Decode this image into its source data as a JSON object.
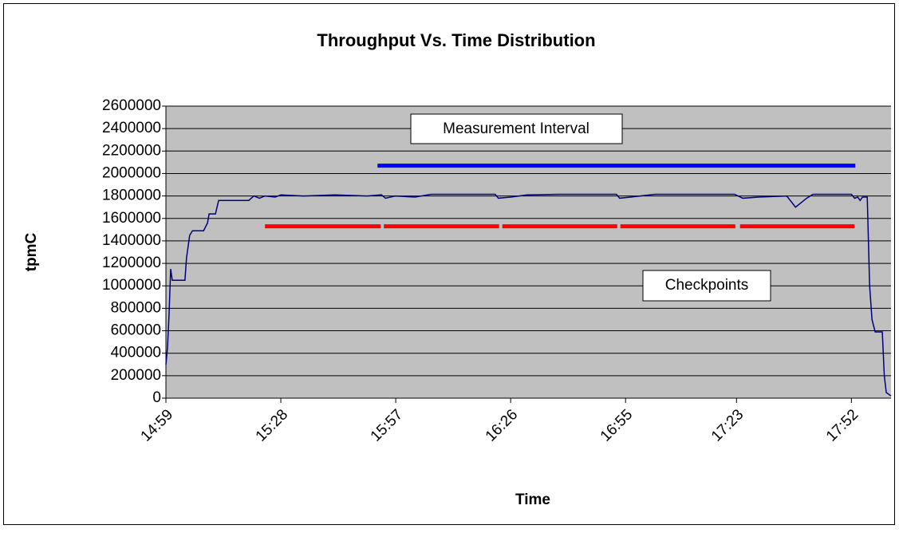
{
  "chart_data": {
    "type": "line",
    "title": "Throughput Vs. Time Distribution",
    "x_label": "Time",
    "y_label": "tpmC",
    "xlim": [
      899,
      1082
    ],
    "xticks": [
      {
        "value": 899,
        "label": "14:59"
      },
      {
        "value": 928,
        "label": "15:28"
      },
      {
        "value": 957,
        "label": "15:57"
      },
      {
        "value": 986,
        "label": "16:26"
      },
      {
        "value": 1015,
        "label": "16:55"
      },
      {
        "value": 1043,
        "label": "17:23"
      },
      {
        "value": 1072,
        "label": "17:52"
      }
    ],
    "ylim": [
      0,
      2600000
    ],
    "yticks": [
      0,
      200000,
      400000,
      600000,
      800000,
      1000000,
      1200000,
      1400000,
      1600000,
      1800000,
      2000000,
      2200000,
      2400000,
      2600000
    ],
    "grid": true,
    "series": [
      {
        "color": "#000080",
        "x": [
          899.0,
          899.4,
          899.8,
          900.2,
          900.6,
          903.8,
          904.2,
          905.0,
          905.7,
          908.5,
          909.5,
          909.9,
          911.5,
          912.3,
          919.9,
          921.2,
          922.6,
          924.0,
          926.6,
          928.0,
          933.7,
          941.7,
          949.8,
          953.4,
          954.4,
          956.9,
          961.9,
          965.9,
          974.0,
          982.1,
          982.9,
          986.1,
          990.1,
          998.2,
          1010.3,
          1012.7,
          1013.5,
          1016.3,
          1022.4,
          1034.5,
          1042.5,
          1044.6,
          1048.6,
          1055.7,
          1057.9,
          1060.7,
          1062.3,
          1072.0,
          1072.8,
          1073.6,
          1074.2,
          1074.8,
          1076.0,
          1076.6,
          1077.2,
          1078.0,
          1079.8,
          1080.3,
          1080.8,
          1082.0
        ],
        "values": [
          300000,
          450000,
          750000,
          1150000,
          1050000,
          1050000,
          1250000,
          1450000,
          1490000,
          1490000,
          1560000,
          1640000,
          1640000,
          1760000,
          1760000,
          1800000,
          1780000,
          1800000,
          1790000,
          1810000,
          1800000,
          1810000,
          1800000,
          1810000,
          1780000,
          1800000,
          1790000,
          1815000,
          1815000,
          1815000,
          1780000,
          1790000,
          1810000,
          1815000,
          1815000,
          1815000,
          1780000,
          1790000,
          1815000,
          1815000,
          1815000,
          1780000,
          1790000,
          1800000,
          1700000,
          1780000,
          1815000,
          1815000,
          1780000,
          1790000,
          1760000,
          1790000,
          1790000,
          1000000,
          700000,
          590000,
          590000,
          200000,
          50000,
          20000
        ]
      }
    ],
    "measurement_interval": {
      "label": "Measurement Interval",
      "color": "#0000ff",
      "start": 952.4,
      "end": 1073.0,
      "value": 2070000
    },
    "checkpoints": {
      "label": "Checkpoints",
      "color": "#ff0000",
      "value": 1530000,
      "segments": [
        [
          924.0,
          953.2
        ],
        [
          954.0,
          983.1
        ],
        [
          983.9,
          1012.9
        ],
        [
          1013.7,
          1042.7
        ],
        [
          1043.9,
          1072.8
        ]
      ]
    }
  }
}
